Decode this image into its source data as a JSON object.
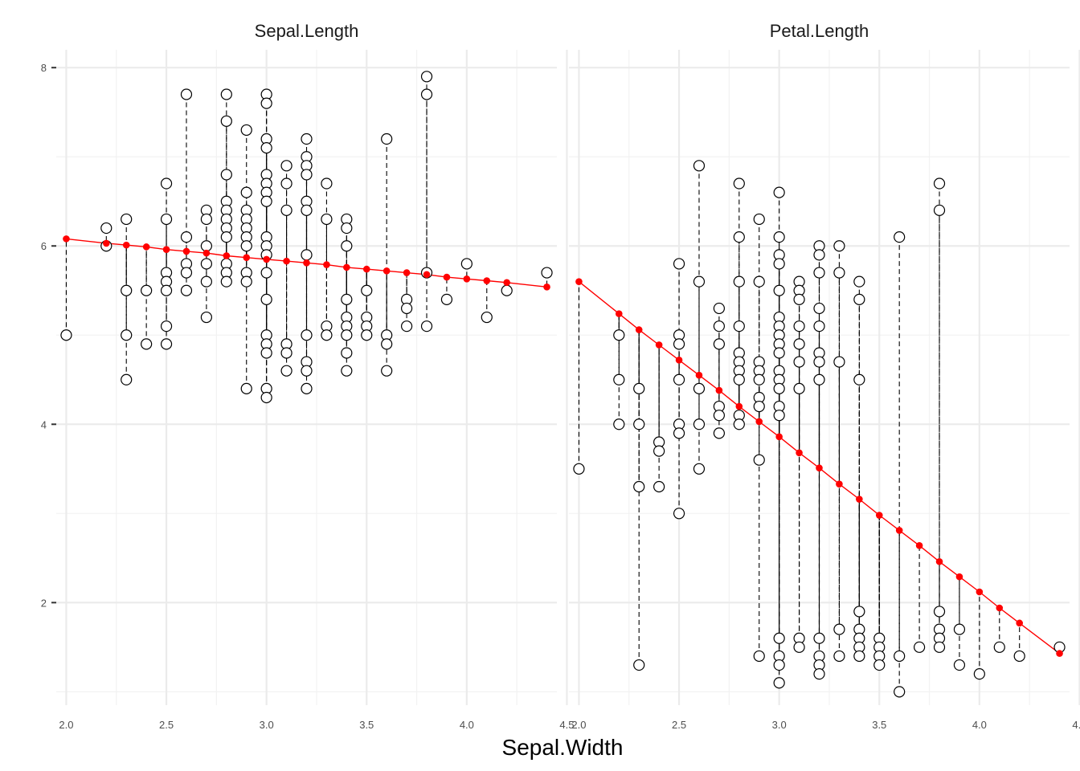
{
  "chart_data": {
    "type": "scatter",
    "xlabel": "Sepal.Width",
    "ylabel": "",
    "xlim": [
      1.95,
      4.45
    ],
    "ylim": [
      0.85,
      8.2
    ],
    "xticks": [
      "2.0",
      "2.5",
      "3.0",
      "3.5",
      "4.0",
      "4.5"
    ],
    "yticks": [
      "2",
      "4",
      "6",
      "8"
    ],
    "grid": true,
    "point_style": "open circles (observed) joined by dashed segments to red fitted points on a red regression line",
    "colors": {
      "observed_fill": "#ffffff",
      "observed_stroke": "#000000",
      "fit": "#ff0000",
      "grid": "#ebebeb"
    },
    "panels": [
      {
        "title": "Sepal.Length",
        "fit_x": [
          2.0,
          2.2,
          2.3,
          2.4,
          2.5,
          2.6,
          2.7,
          2.8,
          2.9,
          3.0,
          3.1,
          3.2,
          3.3,
          3.4,
          3.5,
          3.6,
          3.7,
          3.8,
          3.9,
          4.0,
          4.1,
          4.2,
          4.4
        ],
        "fit_y": [
          6.08,
          6.03,
          6.01,
          5.99,
          5.96,
          5.94,
          5.92,
          5.89,
          5.87,
          5.85,
          5.83,
          5.81,
          5.79,
          5.76,
          5.74,
          5.72,
          5.7,
          5.68,
          5.65,
          5.63,
          5.61,
          5.59,
          5.54
        ],
        "observed": [
          [
            2.0,
            5.0
          ],
          [
            2.2,
            6.2
          ],
          [
            2.2,
            6.0
          ],
          [
            2.3,
            6.3
          ],
          [
            2.3,
            5.5
          ],
          [
            2.3,
            5.0
          ],
          [
            2.3,
            4.5
          ],
          [
            2.4,
            5.5
          ],
          [
            2.4,
            4.9
          ],
          [
            2.5,
            6.7
          ],
          [
            2.5,
            6.3
          ],
          [
            2.5,
            5.7
          ],
          [
            2.5,
            5.6
          ],
          [
            2.5,
            5.5
          ],
          [
            2.5,
            5.1
          ],
          [
            2.5,
            4.9
          ],
          [
            2.6,
            7.7
          ],
          [
            2.6,
            6.1
          ],
          [
            2.6,
            5.8
          ],
          [
            2.6,
            5.7
          ],
          [
            2.6,
            5.5
          ],
          [
            2.7,
            6.4
          ],
          [
            2.7,
            6.3
          ],
          [
            2.7,
            6.0
          ],
          [
            2.7,
            5.8
          ],
          [
            2.7,
            5.6
          ],
          [
            2.7,
            5.2
          ],
          [
            2.8,
            7.7
          ],
          [
            2.8,
            7.4
          ],
          [
            2.8,
            6.8
          ],
          [
            2.8,
            6.5
          ],
          [
            2.8,
            6.4
          ],
          [
            2.8,
            6.3
          ],
          [
            2.8,
            6.2
          ],
          [
            2.8,
            6.1
          ],
          [
            2.8,
            5.8
          ],
          [
            2.8,
            5.7
          ],
          [
            2.8,
            5.6
          ],
          [
            2.9,
            7.3
          ],
          [
            2.9,
            6.6
          ],
          [
            2.9,
            6.4
          ],
          [
            2.9,
            6.3
          ],
          [
            2.9,
            6.2
          ],
          [
            2.9,
            6.1
          ],
          [
            2.9,
            6.0
          ],
          [
            2.9,
            5.7
          ],
          [
            2.9,
            5.6
          ],
          [
            2.9,
            4.4
          ],
          [
            3.0,
            7.7
          ],
          [
            3.0,
            7.6
          ],
          [
            3.0,
            7.2
          ],
          [
            3.0,
            7.1
          ],
          [
            3.0,
            6.8
          ],
          [
            3.0,
            6.7
          ],
          [
            3.0,
            6.6
          ],
          [
            3.0,
            6.5
          ],
          [
            3.0,
            6.1
          ],
          [
            3.0,
            6.0
          ],
          [
            3.0,
            5.9
          ],
          [
            3.0,
            5.7
          ],
          [
            3.0,
            5.4
          ],
          [
            3.0,
            5.0
          ],
          [
            3.0,
            4.9
          ],
          [
            3.0,
            4.8
          ],
          [
            3.0,
            4.4
          ],
          [
            3.0,
            4.3
          ],
          [
            3.1,
            6.9
          ],
          [
            3.1,
            6.7
          ],
          [
            3.1,
            6.4
          ],
          [
            3.1,
            4.9
          ],
          [
            3.1,
            4.8
          ],
          [
            3.1,
            4.6
          ],
          [
            3.2,
            7.2
          ],
          [
            3.2,
            7.0
          ],
          [
            3.2,
            6.9
          ],
          [
            3.2,
            6.8
          ],
          [
            3.2,
            6.5
          ],
          [
            3.2,
            6.4
          ],
          [
            3.2,
            5.9
          ],
          [
            3.2,
            5.0
          ],
          [
            3.2,
            4.7
          ],
          [
            3.2,
            4.6
          ],
          [
            3.2,
            4.4
          ],
          [
            3.3,
            6.7
          ],
          [
            3.3,
            6.3
          ],
          [
            3.3,
            5.1
          ],
          [
            3.3,
            5.0
          ],
          [
            3.4,
            6.3
          ],
          [
            3.4,
            6.2
          ],
          [
            3.4,
            6.0
          ],
          [
            3.4,
            5.4
          ],
          [
            3.4,
            5.2
          ],
          [
            3.4,
            5.1
          ],
          [
            3.4,
            5.0
          ],
          [
            3.4,
            4.8
          ],
          [
            3.4,
            4.6
          ],
          [
            3.5,
            5.5
          ],
          [
            3.5,
            5.2
          ],
          [
            3.5,
            5.1
          ],
          [
            3.5,
            5.0
          ],
          [
            3.6,
            7.2
          ],
          [
            3.6,
            5.0
          ],
          [
            3.6,
            4.9
          ],
          [
            3.6,
            4.6
          ],
          [
            3.7,
            5.4
          ],
          [
            3.7,
            5.3
          ],
          [
            3.7,
            5.1
          ],
          [
            3.8,
            7.9
          ],
          [
            3.8,
            7.7
          ],
          [
            3.8,
            5.7
          ],
          [
            3.8,
            5.1
          ],
          [
            3.9,
            5.4
          ],
          [
            4.0,
            5.8
          ],
          [
            4.1,
            5.2
          ],
          [
            4.2,
            5.5
          ],
          [
            4.4,
            5.7
          ]
        ]
      },
      {
        "title": "Petal.Length",
        "fit_x": [
          2.0,
          2.2,
          2.3,
          2.4,
          2.5,
          2.6,
          2.7,
          2.8,
          2.9,
          3.0,
          3.1,
          3.2,
          3.3,
          3.4,
          3.5,
          3.6,
          3.7,
          3.8,
          3.9,
          4.0,
          4.1,
          4.2,
          4.4
        ],
        "fit_y": [
          5.6,
          5.24,
          5.06,
          4.89,
          4.72,
          4.55,
          4.38,
          4.2,
          4.03,
          3.86,
          3.68,
          3.51,
          3.33,
          3.16,
          2.98,
          2.81,
          2.64,
          2.46,
          2.29,
          2.12,
          1.94,
          1.77,
          1.43
        ],
        "observed": [
          [
            2.0,
            3.5
          ],
          [
            2.2,
            5.0
          ],
          [
            2.2,
            4.5
          ],
          [
            2.2,
            4.0
          ],
          [
            2.3,
            4.4
          ],
          [
            2.3,
            4.0
          ],
          [
            2.3,
            3.3
          ],
          [
            2.3,
            1.3
          ],
          [
            2.4,
            3.8
          ],
          [
            2.4,
            3.7
          ],
          [
            2.4,
            3.3
          ],
          [
            2.5,
            5.8
          ],
          [
            2.5,
            5.0
          ],
          [
            2.5,
            4.9
          ],
          [
            2.5,
            4.5
          ],
          [
            2.5,
            4.0
          ],
          [
            2.5,
            3.9
          ],
          [
            2.5,
            3.0
          ],
          [
            2.6,
            6.9
          ],
          [
            2.6,
            5.6
          ],
          [
            2.6,
            4.4
          ],
          [
            2.6,
            4.0
          ],
          [
            2.6,
            3.5
          ],
          [
            2.7,
            5.3
          ],
          [
            2.7,
            5.1
          ],
          [
            2.7,
            4.9
          ],
          [
            2.7,
            4.2
          ],
          [
            2.7,
            4.1
          ],
          [
            2.7,
            3.9
          ],
          [
            2.8,
            6.7
          ],
          [
            2.8,
            6.1
          ],
          [
            2.8,
            5.6
          ],
          [
            2.8,
            5.1
          ],
          [
            2.8,
            4.8
          ],
          [
            2.8,
            4.7
          ],
          [
            2.8,
            4.6
          ],
          [
            2.8,
            4.5
          ],
          [
            2.8,
            4.1
          ],
          [
            2.8,
            4.0
          ],
          [
            2.9,
            6.3
          ],
          [
            2.9,
            5.6
          ],
          [
            2.9,
            4.7
          ],
          [
            2.9,
            4.6
          ],
          [
            2.9,
            4.5
          ],
          [
            2.9,
            4.3
          ],
          [
            2.9,
            4.2
          ],
          [
            2.9,
            3.6
          ],
          [
            2.9,
            1.4
          ],
          [
            3.0,
            6.6
          ],
          [
            3.0,
            6.1
          ],
          [
            3.0,
            5.9
          ],
          [
            3.0,
            5.8
          ],
          [
            3.0,
            5.5
          ],
          [
            3.0,
            5.2
          ],
          [
            3.0,
            5.1
          ],
          [
            3.0,
            5.0
          ],
          [
            3.0,
            4.9
          ],
          [
            3.0,
            4.8
          ],
          [
            3.0,
            4.6
          ],
          [
            3.0,
            4.5
          ],
          [
            3.0,
            4.4
          ],
          [
            3.0,
            4.2
          ],
          [
            3.0,
            4.1
          ],
          [
            3.0,
            1.6
          ],
          [
            3.0,
            1.4
          ],
          [
            3.0,
            1.3
          ],
          [
            3.0,
            1.1
          ],
          [
            3.1,
            5.6
          ],
          [
            3.1,
            5.5
          ],
          [
            3.1,
            5.4
          ],
          [
            3.1,
            5.1
          ],
          [
            3.1,
            4.9
          ],
          [
            3.1,
            4.7
          ],
          [
            3.1,
            4.4
          ],
          [
            3.1,
            1.6
          ],
          [
            3.1,
            1.5
          ],
          [
            3.2,
            6.0
          ],
          [
            3.2,
            5.9
          ],
          [
            3.2,
            5.7
          ],
          [
            3.2,
            5.3
          ],
          [
            3.2,
            5.1
          ],
          [
            3.2,
            4.8
          ],
          [
            3.2,
            4.7
          ],
          [
            3.2,
            4.5
          ],
          [
            3.2,
            1.6
          ],
          [
            3.2,
            1.4
          ],
          [
            3.2,
            1.3
          ],
          [
            3.2,
            1.2
          ],
          [
            3.3,
            6.0
          ],
          [
            3.3,
            5.7
          ],
          [
            3.3,
            4.7
          ],
          [
            3.3,
            1.7
          ],
          [
            3.3,
            1.4
          ],
          [
            3.4,
            5.6
          ],
          [
            3.4,
            5.4
          ],
          [
            3.4,
            4.5
          ],
          [
            3.4,
            1.9
          ],
          [
            3.4,
            1.7
          ],
          [
            3.4,
            1.6
          ],
          [
            3.4,
            1.5
          ],
          [
            3.4,
            1.4
          ],
          [
            3.5,
            1.6
          ],
          [
            3.5,
            1.5
          ],
          [
            3.5,
            1.4
          ],
          [
            3.5,
            1.3
          ],
          [
            3.6,
            6.1
          ],
          [
            3.6,
            1.4
          ],
          [
            3.6,
            1.0
          ],
          [
            3.7,
            1.5
          ],
          [
            3.8,
            6.7
          ],
          [
            3.8,
            6.4
          ],
          [
            3.8,
            1.9
          ],
          [
            3.8,
            1.7
          ],
          [
            3.8,
            1.6
          ],
          [
            3.8,
            1.5
          ],
          [
            3.9,
            1.7
          ],
          [
            3.9,
            1.3
          ],
          [
            4.0,
            1.2
          ],
          [
            4.1,
            1.5
          ],
          [
            4.2,
            1.4
          ],
          [
            4.4,
            1.5
          ]
        ]
      }
    ]
  }
}
